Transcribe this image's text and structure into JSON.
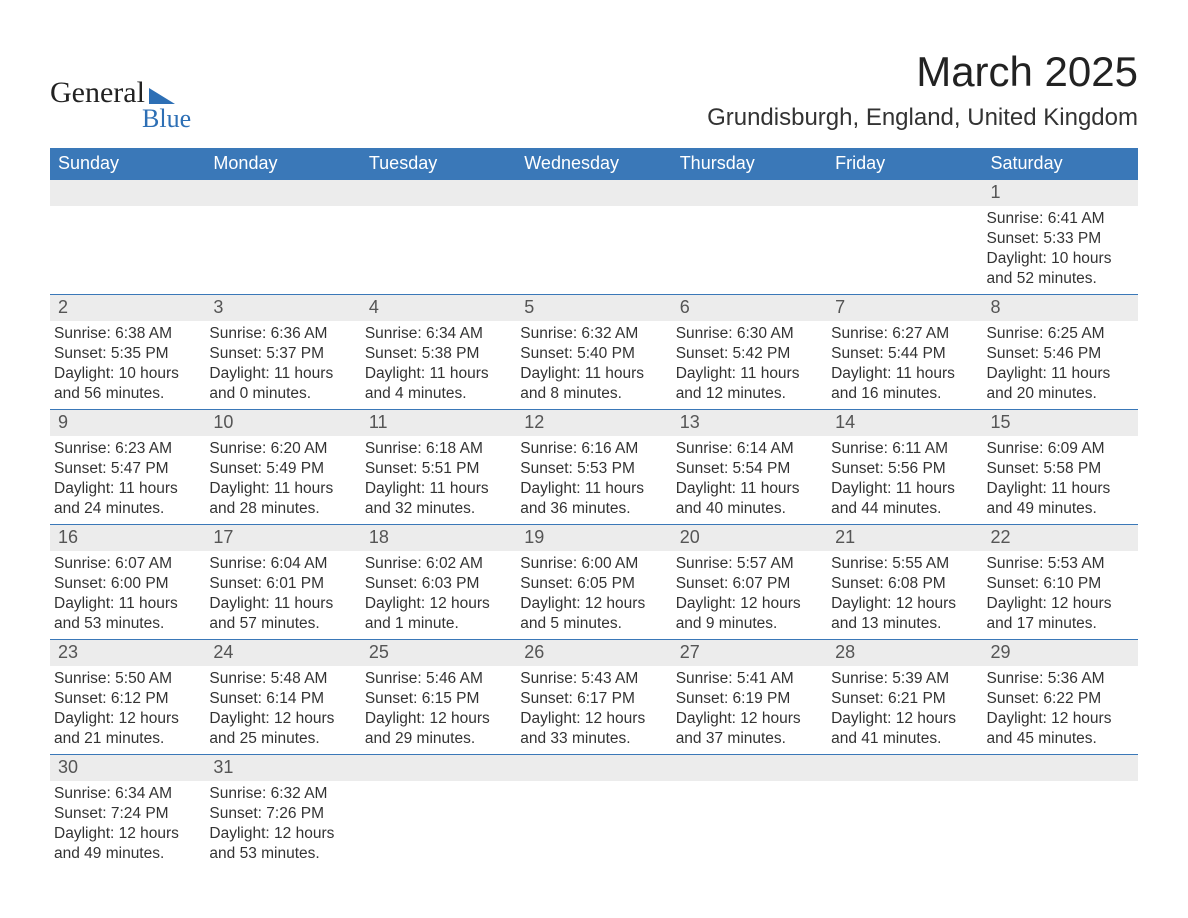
{
  "logo": {
    "general": "General",
    "blue": "Blue"
  },
  "title": "March 2025",
  "location": "Grundisburgh, England, United Kingdom",
  "colors": {
    "header_bg": "#3a78b8",
    "header_text": "#ffffff",
    "daynum_bg": "#ececec",
    "daynum_text": "#555555",
    "body_text": "#333333",
    "logo_accent": "#2d6fb5"
  },
  "day_headers": [
    "Sunday",
    "Monday",
    "Tuesday",
    "Wednesday",
    "Thursday",
    "Friday",
    "Saturday"
  ],
  "weeks": [
    [
      null,
      null,
      null,
      null,
      null,
      null,
      {
        "n": "1",
        "sunrise": "6:41 AM",
        "sunset": "5:33 PM",
        "daylight": "10 hours and 52 minutes."
      }
    ],
    [
      {
        "n": "2",
        "sunrise": "6:38 AM",
        "sunset": "5:35 PM",
        "daylight": "10 hours and 56 minutes."
      },
      {
        "n": "3",
        "sunrise": "6:36 AM",
        "sunset": "5:37 PM",
        "daylight": "11 hours and 0 minutes."
      },
      {
        "n": "4",
        "sunrise": "6:34 AM",
        "sunset": "5:38 PM",
        "daylight": "11 hours and 4 minutes."
      },
      {
        "n": "5",
        "sunrise": "6:32 AM",
        "sunset": "5:40 PM",
        "daylight": "11 hours and 8 minutes."
      },
      {
        "n": "6",
        "sunrise": "6:30 AM",
        "sunset": "5:42 PM",
        "daylight": "11 hours and 12 minutes."
      },
      {
        "n": "7",
        "sunrise": "6:27 AM",
        "sunset": "5:44 PM",
        "daylight": "11 hours and 16 minutes."
      },
      {
        "n": "8",
        "sunrise": "6:25 AM",
        "sunset": "5:46 PM",
        "daylight": "11 hours and 20 minutes."
      }
    ],
    [
      {
        "n": "9",
        "sunrise": "6:23 AM",
        "sunset": "5:47 PM",
        "daylight": "11 hours and 24 minutes."
      },
      {
        "n": "10",
        "sunrise": "6:20 AM",
        "sunset": "5:49 PM",
        "daylight": "11 hours and 28 minutes."
      },
      {
        "n": "11",
        "sunrise": "6:18 AM",
        "sunset": "5:51 PM",
        "daylight": "11 hours and 32 minutes."
      },
      {
        "n": "12",
        "sunrise": "6:16 AM",
        "sunset": "5:53 PM",
        "daylight": "11 hours and 36 minutes."
      },
      {
        "n": "13",
        "sunrise": "6:14 AM",
        "sunset": "5:54 PM",
        "daylight": "11 hours and 40 minutes."
      },
      {
        "n": "14",
        "sunrise": "6:11 AM",
        "sunset": "5:56 PM",
        "daylight": "11 hours and 44 minutes."
      },
      {
        "n": "15",
        "sunrise": "6:09 AM",
        "sunset": "5:58 PM",
        "daylight": "11 hours and 49 minutes."
      }
    ],
    [
      {
        "n": "16",
        "sunrise": "6:07 AM",
        "sunset": "6:00 PM",
        "daylight": "11 hours and 53 minutes."
      },
      {
        "n": "17",
        "sunrise": "6:04 AM",
        "sunset": "6:01 PM",
        "daylight": "11 hours and 57 minutes."
      },
      {
        "n": "18",
        "sunrise": "6:02 AM",
        "sunset": "6:03 PM",
        "daylight": "12 hours and 1 minute."
      },
      {
        "n": "19",
        "sunrise": "6:00 AM",
        "sunset": "6:05 PM",
        "daylight": "12 hours and 5 minutes."
      },
      {
        "n": "20",
        "sunrise": "5:57 AM",
        "sunset": "6:07 PM",
        "daylight": "12 hours and 9 minutes."
      },
      {
        "n": "21",
        "sunrise": "5:55 AM",
        "sunset": "6:08 PM",
        "daylight": "12 hours and 13 minutes."
      },
      {
        "n": "22",
        "sunrise": "5:53 AM",
        "sunset": "6:10 PM",
        "daylight": "12 hours and 17 minutes."
      }
    ],
    [
      {
        "n": "23",
        "sunrise": "5:50 AM",
        "sunset": "6:12 PM",
        "daylight": "12 hours and 21 minutes."
      },
      {
        "n": "24",
        "sunrise": "5:48 AM",
        "sunset": "6:14 PM",
        "daylight": "12 hours and 25 minutes."
      },
      {
        "n": "25",
        "sunrise": "5:46 AM",
        "sunset": "6:15 PM",
        "daylight": "12 hours and 29 minutes."
      },
      {
        "n": "26",
        "sunrise": "5:43 AM",
        "sunset": "6:17 PM",
        "daylight": "12 hours and 33 minutes."
      },
      {
        "n": "27",
        "sunrise": "5:41 AM",
        "sunset": "6:19 PM",
        "daylight": "12 hours and 37 minutes."
      },
      {
        "n": "28",
        "sunrise": "5:39 AM",
        "sunset": "6:21 PM",
        "daylight": "12 hours and 41 minutes."
      },
      {
        "n": "29",
        "sunrise": "5:36 AM",
        "sunset": "6:22 PM",
        "daylight": "12 hours and 45 minutes."
      }
    ],
    [
      {
        "n": "30",
        "sunrise": "6:34 AM",
        "sunset": "7:24 PM",
        "daylight": "12 hours and 49 minutes."
      },
      {
        "n": "31",
        "sunrise": "6:32 AM",
        "sunset": "7:26 PM",
        "daylight": "12 hours and 53 minutes."
      },
      null,
      null,
      null,
      null,
      null
    ]
  ],
  "labels": {
    "sunrise": "Sunrise: ",
    "sunset": "Sunset: ",
    "daylight": "Daylight: "
  }
}
